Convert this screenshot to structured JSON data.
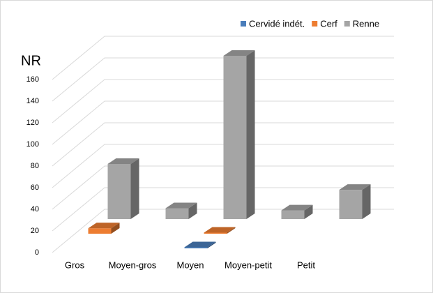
{
  "chart_data": {
    "type": "bar",
    "y_axis_title": "NR",
    "categories": [
      "Gros",
      "Moyen-gros",
      "Moyen",
      "Moyen-petit",
      "Petit"
    ],
    "series": [
      {
        "name": "Cervidé indét.",
        "color": "#4a7ebb",
        "values": [
          0,
          0,
          1,
          0,
          0
        ]
      },
      {
        "name": "Cerf",
        "color": "#ed7d31",
        "values": [
          5,
          0,
          1,
          0,
          0
        ]
      },
      {
        "name": "Renne",
        "color": "#a5a5a5",
        "values": [
          51,
          10,
          151,
          8,
          27
        ]
      }
    ],
    "ylim": [
      0,
      180
    ],
    "yticks": [
      0,
      20,
      40,
      60,
      80,
      100,
      120,
      140,
      160
    ],
    "grid": true,
    "legend": "top-right"
  }
}
